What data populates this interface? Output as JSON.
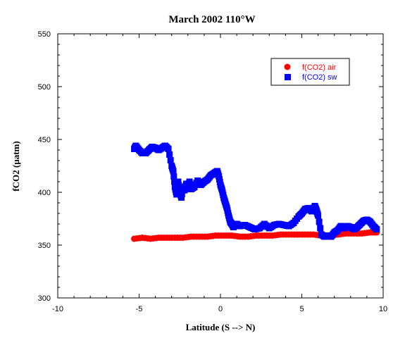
{
  "chart_data": {
    "type": "scatter",
    "title": "March 2002 110°W",
    "xlabel": "Latitude (S --> N)",
    "ylabel": "fCO2 (µatm)",
    "xlim": [
      -10,
      10
    ],
    "ylim": [
      300,
      550
    ],
    "xticks": [
      -10,
      -5,
      0,
      5,
      10
    ],
    "yticks": [
      300,
      350,
      400,
      450,
      500,
      550
    ],
    "legend_position": "top-right",
    "series": [
      {
        "name": "f(CO2) air",
        "color": "#ff0000",
        "marker": "circle",
        "x": [
          -5.3,
          -4.8,
          -4.3,
          -3.8,
          -3.3,
          -2.8,
          -2.3,
          -1.8,
          -1.3,
          -0.8,
          -0.3,
          0.2,
          0.7,
          1.2,
          1.7,
          2.2,
          2.7,
          3.2,
          3.7,
          4.2,
          4.7,
          5.2,
          5.7,
          6.2,
          6.7,
          7.2,
          7.7,
          8.2,
          8.7,
          9.2,
          9.6
        ],
        "y": [
          356,
          357,
          356,
          357,
          357,
          357,
          357,
          358,
          358,
          358,
          359,
          359,
          359,
          358,
          358,
          359,
          359,
          359,
          360,
          360,
          360,
          360,
          360,
          359,
          359,
          360,
          361,
          361,
          361,
          362,
          362
        ]
      },
      {
        "name": "f(CO2) sw",
        "color": "#0000ff",
        "marker": "square",
        "x": [
          -5.3,
          -5.2,
          -5.0,
          -4.8,
          -4.6,
          -4.4,
          -4.2,
          -4.0,
          -3.8,
          -3.6,
          -3.4,
          -3.2,
          -3.0,
          -2.9,
          -2.8,
          -2.7,
          -2.6,
          -2.5,
          -2.4,
          -2.3,
          -2.2,
          -2.1,
          -2.0,
          -1.9,
          -1.8,
          -1.6,
          -1.4,
          -1.2,
          -1.0,
          -0.8,
          -0.6,
          -0.4,
          -0.2,
          -0.1,
          0.0,
          0.1,
          0.2,
          0.3,
          0.4,
          0.5,
          0.6,
          0.7,
          0.8,
          1.0,
          1.2,
          1.5,
          1.8,
          2.1,
          2.4,
          2.7,
          3.0,
          3.3,
          3.6,
          3.9,
          4.2,
          4.5,
          4.8,
          5.0,
          5.2,
          5.4,
          5.6,
          5.8,
          5.9,
          6.0,
          6.2,
          6.4,
          6.6,
          6.8,
          7.0,
          7.2,
          7.4,
          7.6,
          7.8,
          8.0,
          8.2,
          8.4,
          8.6,
          8.8,
          9.0,
          9.2,
          9.4,
          9.6
        ],
        "y": [
          441,
          444,
          440,
          437,
          437,
          440,
          443,
          442,
          440,
          442,
          444,
          441,
          425,
          420,
          405,
          398,
          410,
          400,
          395,
          405,
          402,
          408,
          405,
          410,
          403,
          405,
          411,
          407,
          410,
          412,
          416,
          418,
          420,
          415,
          407,
          402,
          395,
          390,
          385,
          378,
          372,
          370,
          367,
          370,
          368,
          369,
          367,
          365,
          366,
          370,
          366,
          369,
          370,
          369,
          368,
          371,
          377,
          380,
          384,
          385,
          382,
          387,
          383,
          378,
          360,
          358,
          359,
          358,
          362,
          364,
          368,
          366,
          368,
          367,
          365,
          367,
          370,
          373,
          374,
          372,
          368,
          365
        ]
      }
    ]
  }
}
